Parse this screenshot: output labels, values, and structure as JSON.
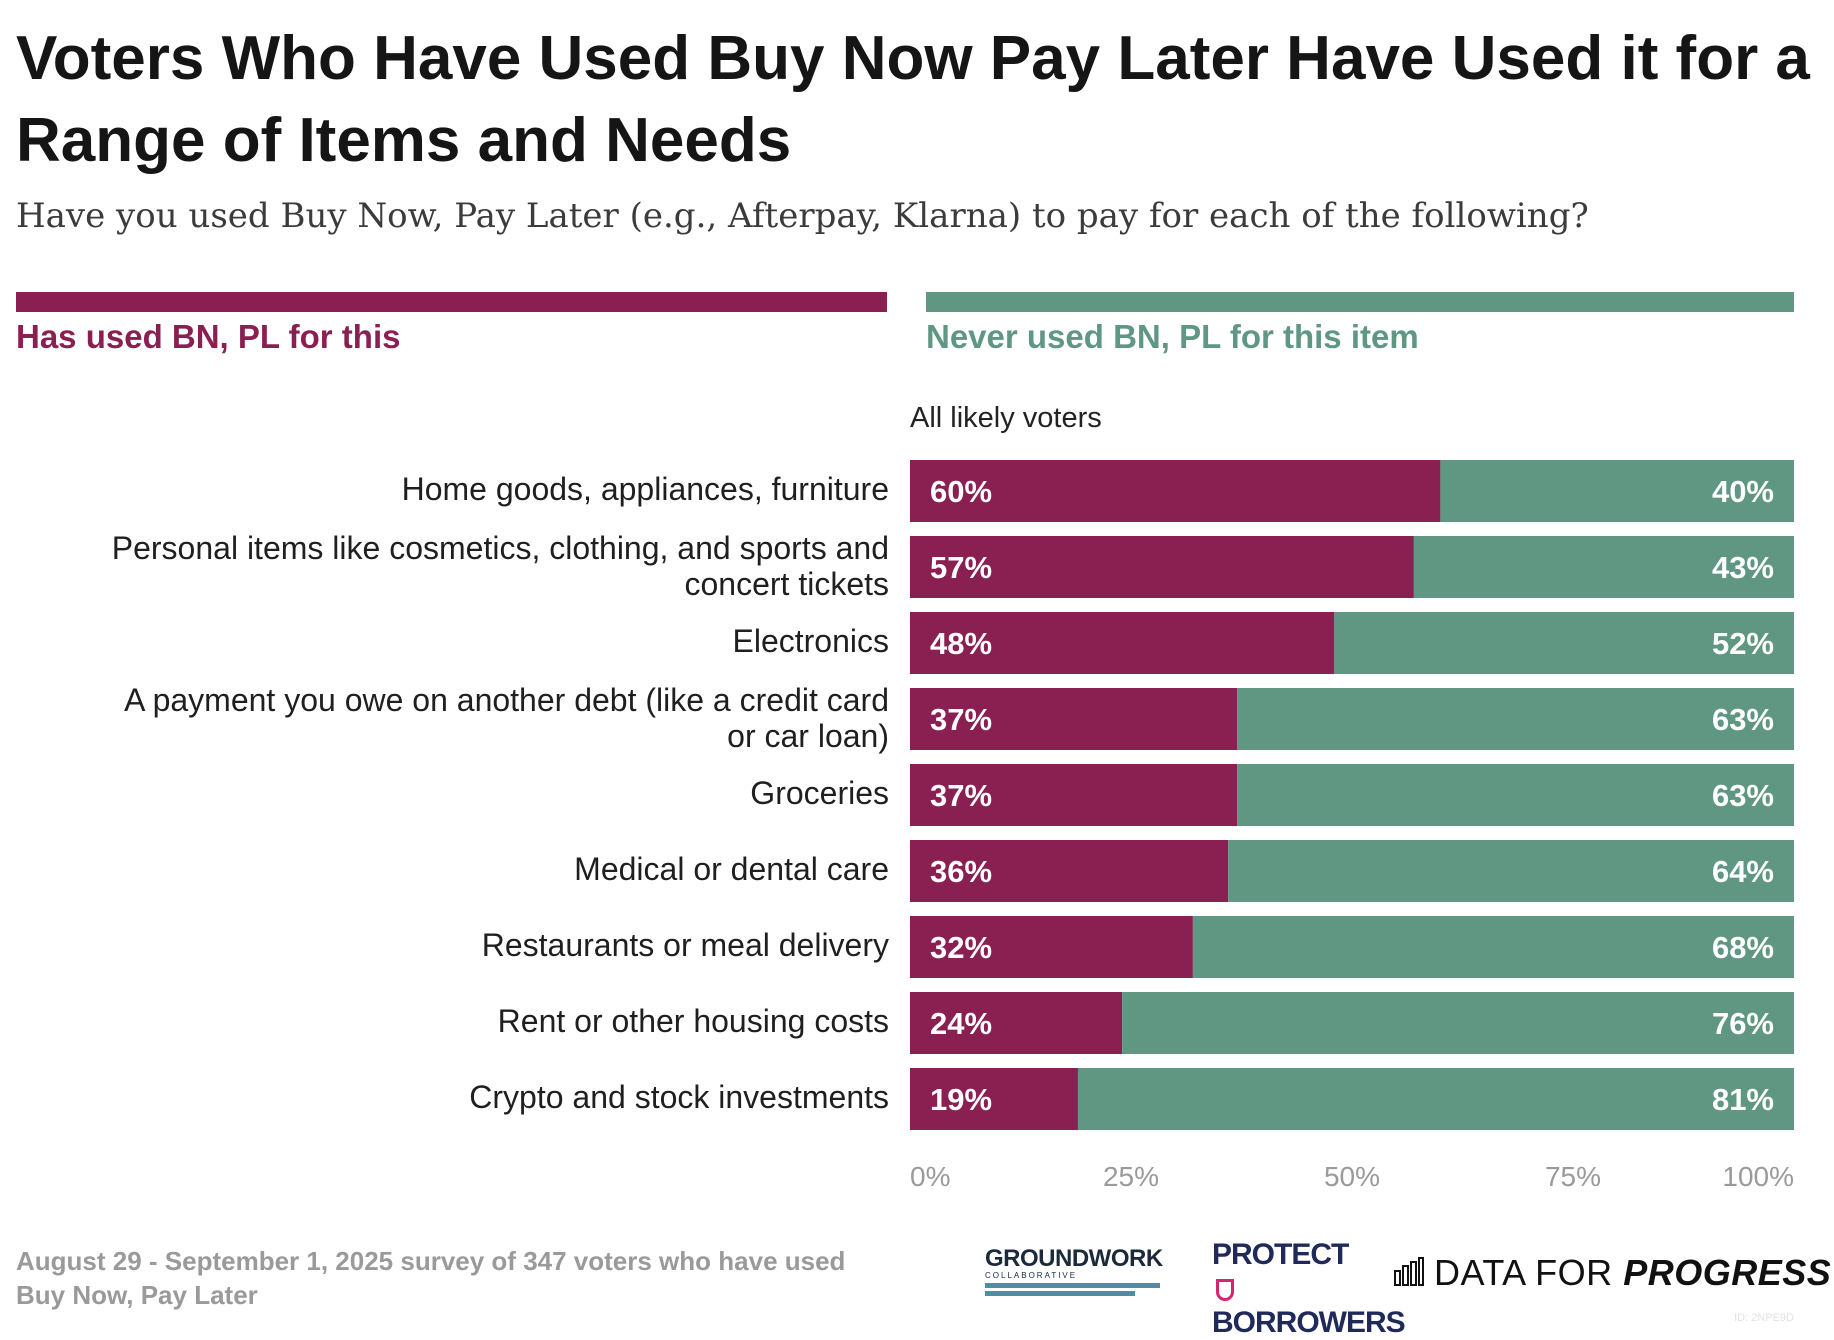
{
  "title": "Voters Who Have Used Buy Now Pay Later Have Used it for a Range of Items and Needs",
  "subtitle": "Have you used Buy Now, Pay Later (e.g., Afterpay, Klarna) to pay for each of the following?",
  "legend": {
    "used_label": "Has used BN, PL for this",
    "never_label": "Never used BN, PL for this item"
  },
  "group_label": "All likely voters",
  "colors": {
    "used": "#8a1f52",
    "never": "#5f9783",
    "tick": "#9a9a9a"
  },
  "chart_data": {
    "type": "bar",
    "orientation": "horizontal",
    "stacked": true,
    "categories": [
      "Home goods, appliances, furniture",
      "Personal items like cosmetics, clothing, and sports and concert tickets",
      "Electronics",
      "A payment you owe on another debt (like a credit card or car loan)",
      "Groceries",
      "Medical or dental care",
      "Restaurants or meal delivery",
      "Rent or other housing costs",
      "Crypto and stock investments"
    ],
    "category_lines": [
      [
        "Home goods, appliances, furniture"
      ],
      [
        "Personal items like cosmetics, clothing, and sports and",
        "concert tickets"
      ],
      [
        "Electronics"
      ],
      [
        "A payment you owe on another debt (like a credit card",
        "or car loan)"
      ],
      [
        "Groceries"
      ],
      [
        "Medical or dental care"
      ],
      [
        "Restaurants or meal delivery"
      ],
      [
        "Rent or other housing costs"
      ],
      [
        "Crypto and stock investments"
      ]
    ],
    "series": [
      {
        "name": "Has used BN, PL for this",
        "values": [
          60,
          57,
          48,
          37,
          37,
          36,
          32,
          24,
          19
        ],
        "labels": [
          "60%",
          "57%",
          "48%",
          "37%",
          "37%",
          "36%",
          "32%",
          "24%",
          "19%"
        ]
      },
      {
        "name": "Never used BN, PL for this item",
        "values": [
          40,
          43,
          52,
          63,
          63,
          64,
          68,
          76,
          81
        ],
        "labels": [
          "40%",
          "43%",
          "52%",
          "63%",
          "63%",
          "64%",
          "68%",
          "76%",
          "81%"
        ]
      }
    ],
    "xlim": [
      0,
      100
    ],
    "x_ticks": [
      0,
      25,
      50,
      75,
      100
    ],
    "x_tick_labels": [
      "0%",
      "25%",
      "50%",
      "75%",
      "100%"
    ],
    "grid": false
  },
  "footer": {
    "note": "August 29 - September 1, 2025 survey of 347 voters who have used Buy Now, Pay Later",
    "groundwork_name": "GROUNDWORK",
    "groundwork_sub": "COLLABORATIVE",
    "protect_line1": "PROTECT",
    "protect_line2": "BORROWERS",
    "dfp_prefix": "DATA FOR",
    "dfp_strong": "PROGRESS",
    "chart_id": "ID: 2NPE9D"
  }
}
